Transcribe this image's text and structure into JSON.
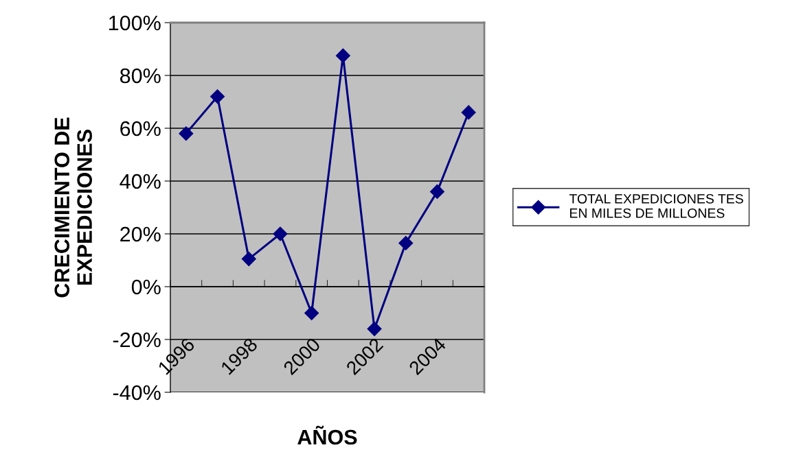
{
  "chart_data": {
    "type": "line",
    "xlabel": "AÑOS",
    "ylabel": "CRECIMIENTO DE\nEXPEDICIONES",
    "categories": [
      "1996",
      null,
      "1998",
      null,
      "2000",
      null,
      "2002",
      null,
      "2004",
      null
    ],
    "series": [
      {
        "name": "TOTAL EXPEDICIONES TES\nEN MILES DE MILLONES",
        "color": "#000080",
        "values": [
          58,
          72,
          10.5,
          20,
          -10,
          87.5,
          -16,
          16.5,
          36,
          66
        ]
      }
    ],
    "ylim": [
      -40,
      100
    ],
    "yticks": [
      {
        "value": -40,
        "label": "-40%"
      },
      {
        "value": -20,
        "label": "-20%"
      },
      {
        "value": 0,
        "label": "0%"
      },
      {
        "value": 20,
        "label": "20%"
      },
      {
        "value": 40,
        "label": "40%"
      },
      {
        "value": 60,
        "label": "60%"
      },
      {
        "value": 80,
        "label": "80%"
      },
      {
        "value": 100,
        "label": "100%"
      }
    ],
    "grid": "y",
    "legend": "right",
    "marker": "diamond",
    "line_style": "solid"
  }
}
